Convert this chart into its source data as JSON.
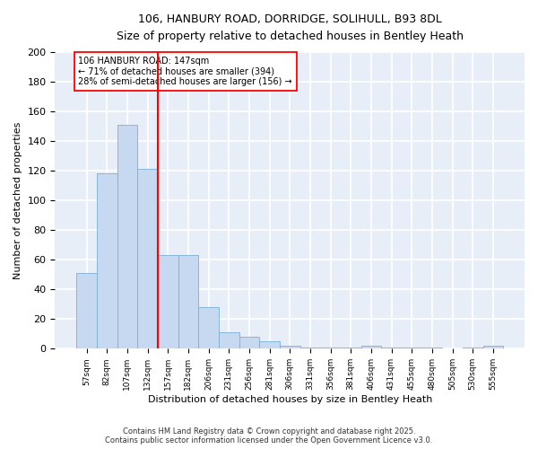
{
  "title_line1": "106, HANBURY ROAD, DORRIDGE, SOLIHULL, B93 8DL",
  "title_line2": "Size of property relative to detached houses in Bentley Heath",
  "xlabel": "Distribution of detached houses by size in Bentley Heath",
  "ylabel": "Number of detached properties",
  "categories": [
    "57sqm",
    "82sqm",
    "107sqm",
    "132sqm",
    "157sqm",
    "182sqm",
    "206sqm",
    "231sqm",
    "256sqm",
    "281sqm",
    "306sqm",
    "331sqm",
    "356sqm",
    "381sqm",
    "406sqm",
    "431sqm",
    "455sqm",
    "480sqm",
    "505sqm",
    "530sqm",
    "555sqm"
  ],
  "values": [
    51,
    118,
    151,
    121,
    63,
    63,
    28,
    11,
    8,
    5,
    2,
    1,
    1,
    1,
    2,
    1,
    1,
    1,
    0,
    1,
    2
  ],
  "bar_color": "#c6d9f0",
  "bar_edge_color": "#7bafd4",
  "red_line_x": 3.5,
  "annotation_text": "106 HANBURY ROAD: 147sqm\n← 71% of detached houses are smaller (394)\n28% of semi-detached houses are larger (156) →",
  "ylim": [
    0,
    200
  ],
  "yticks": [
    0,
    20,
    40,
    60,
    80,
    100,
    120,
    140,
    160,
    180,
    200
  ],
  "background_color": "#e8eef8",
  "grid_color": "#ffffff",
  "footer_line1": "Contains HM Land Registry data © Crown copyright and database right 2025.",
  "footer_line2": "Contains public sector information licensed under the Open Government Licence v3.0."
}
